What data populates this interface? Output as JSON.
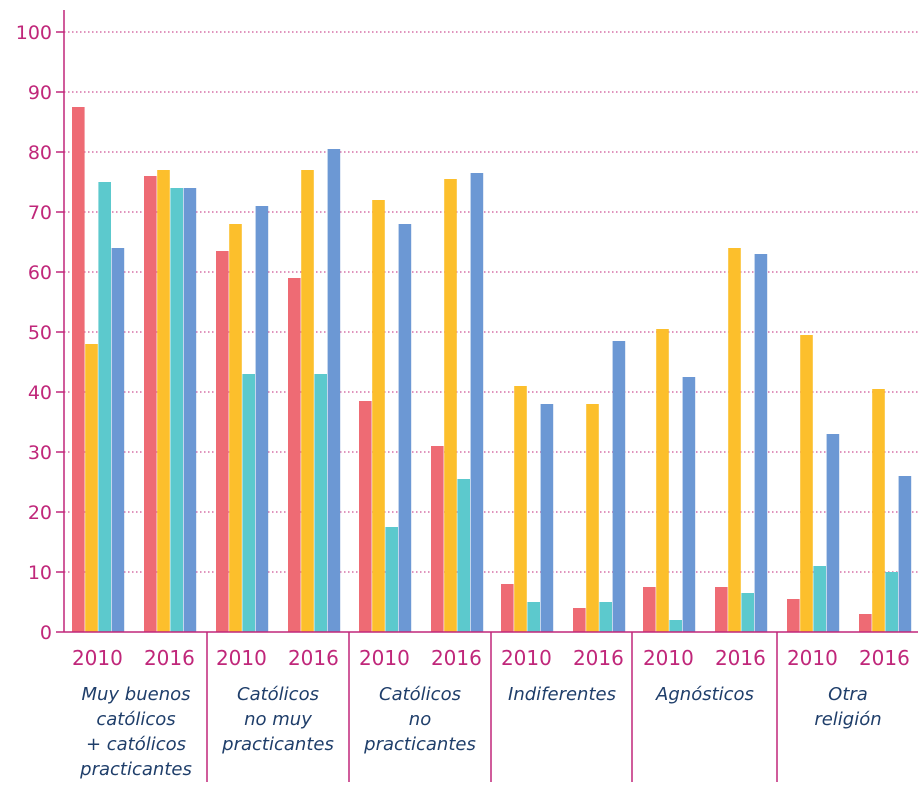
{
  "chart_data": {
    "type": "bar",
    "ylim": [
      0,
      100
    ],
    "yticks": [
      0,
      10,
      20,
      30,
      40,
      50,
      60,
      70,
      80,
      90,
      100
    ],
    "grid": true,
    "colors": [
      "#ee6b74",
      "#fcbf2c",
      "#5cc9cd",
      "#6c98d4"
    ],
    "groups": [
      {
        "label_lines": [
          "Muy buenos",
          "católicos",
          "+ católicos",
          "practicantes"
        ],
        "years": [
          {
            "year": "2010",
            "values": [
              87.5,
              48,
              75,
              64
            ]
          },
          {
            "year": "2016",
            "values": [
              76,
              77,
              74,
              74
            ]
          }
        ]
      },
      {
        "label_lines": [
          "Católicos",
          "no muy",
          "practicantes"
        ],
        "years": [
          {
            "year": "2010",
            "values": [
              63.5,
              68,
              43,
              71
            ]
          },
          {
            "year": "2016",
            "values": [
              59,
              77,
              43,
              80.5
            ]
          }
        ]
      },
      {
        "label_lines": [
          "Católicos",
          "no",
          "practicantes"
        ],
        "years": [
          {
            "year": "2010",
            "values": [
              38.5,
              72,
              17.5,
              68
            ]
          },
          {
            "year": "2016",
            "values": [
              31,
              75.5,
              25.5,
              76.5
            ]
          }
        ]
      },
      {
        "label_lines": [
          "Indiferentes"
        ],
        "years": [
          {
            "year": "2010",
            "values": [
              8,
              41,
              5,
              38
            ]
          },
          {
            "year": "2016",
            "values": [
              4,
              38,
              5,
              48.5
            ]
          }
        ]
      },
      {
        "label_lines": [
          "Agnósticos"
        ],
        "years": [
          {
            "year": "2010",
            "values": [
              7.5,
              50.5,
              2,
              42.5
            ]
          },
          {
            "year": "2016",
            "values": [
              7.5,
              64,
              6.5,
              63
            ]
          }
        ]
      },
      {
        "label_lines": [
          "Otra",
          "religión"
        ],
        "years": [
          {
            "year": "2010",
            "values": [
              5.5,
              49.5,
              11,
              33
            ]
          },
          {
            "year": "2016",
            "values": [
              3,
              40.5,
              10,
              26
            ]
          }
        ]
      }
    ]
  }
}
